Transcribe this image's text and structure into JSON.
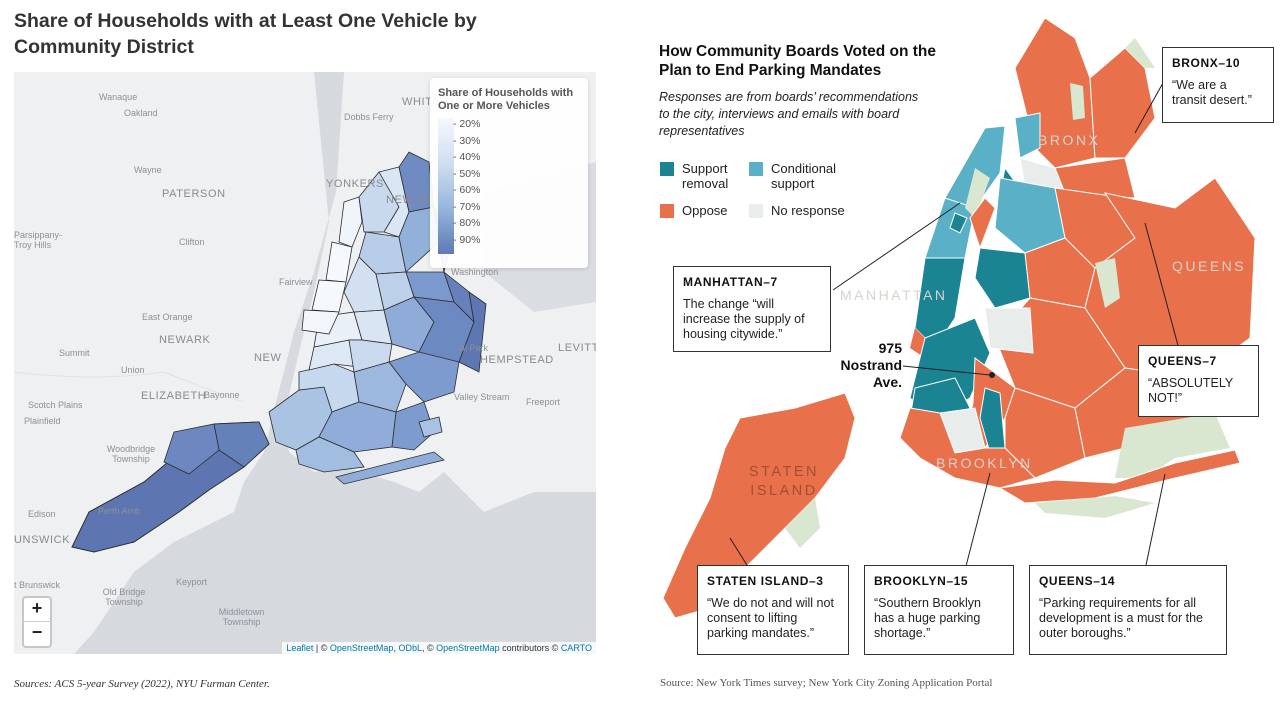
{
  "left": {
    "title": "Share of Households with at Least One Vehicle by Community District",
    "legend": {
      "title": "Share of Households with One or More Vehicles",
      "ticks": [
        "20%",
        "30%",
        "40%",
        "50%",
        "60%",
        "70%",
        "80%",
        "90%"
      ],
      "colors": [
        "#f5f8fc",
        "#e4edf7",
        "#cfdff0",
        "#b6cce7",
        "#95b5dc",
        "#7d9dcf",
        "#6a86c0",
        "#5f79b5"
      ]
    },
    "place_labels": [
      "Wanaque",
      "Oakland",
      "Dobbs Ferry",
      "WHITE",
      "Wayne",
      "PATERSON",
      "YONKERS",
      "NEW ROC",
      "Parsippany-Troy Hills",
      "Clifton",
      "Washington",
      "Fairview",
      "East Orange",
      "NEWARK",
      "NEW",
      "Summit",
      "Union",
      "ELIZABETH",
      "Bayonne",
      "Scotch Plains",
      "Plainfield",
      "Woodbridge Township",
      "Perth Amb",
      "Edison",
      "UNSWICK",
      "Old Bridge Township",
      "t Brunswick",
      "Keyport",
      "Middletown Township",
      "HEMPSTEAD",
      "Valley Stream",
      "Freeport",
      "LEVITTO",
      "al Park"
    ],
    "zoom": {
      "in": "+",
      "out": "−"
    },
    "attribution": {
      "leaflet": "Leaflet",
      "sep": " | © ",
      "osm": "OpenStreetMap",
      "comma": ", ",
      "odbl": "ODbL",
      "mid": ", © ",
      "osm2": "OpenStreetMap",
      "contrib": " contributors © ",
      "carto": "CARTO"
    },
    "source": "Sources: ACS 5-year Survey (2022), NYU Furman Center."
  },
  "right": {
    "title": "How Community Boards Voted on the Plan to End Parking Mandates",
    "subtitle": "Responses are from boards’ recommendations to the city, interviews and emails with board representatives",
    "legend": [
      {
        "label": "Support removal",
        "color": "#1a8493"
      },
      {
        "label": "Conditional support",
        "color": "#5ab0c6"
      },
      {
        "label": "Oppose",
        "color": "#e8704a"
      },
      {
        "label": "No response",
        "color": "#e8edec"
      }
    ],
    "borough_labels": [
      "BRONX",
      "MANHATTAN",
      "QUEENS",
      "BROOKLYN",
      "STATEN ISLAND"
    ],
    "marker_label": "975 Nostrand Ave.",
    "callouts": [
      {
        "district": "BRONX–10",
        "quote": "“We are a transit desert.”"
      },
      {
        "district": "MANHATTAN–7",
        "quote": "The change “will increase the supply of housing citywide.”"
      },
      {
        "district": "QUEENS–7",
        "quote": "“ABSOLUTELY NOT!”"
      },
      {
        "district": "STATEN ISLAND–3",
        "quote": "“We do not and will not consent to lifting parking mandates.”"
      },
      {
        "district": "BROOKLYN–15",
        "quote": "“Southern Brooklyn has a huge parking shortage.”"
      },
      {
        "district": "QUEENS–14",
        "quote": "“Parking requirements for all development is a must for the outer boroughs.”"
      }
    ],
    "source": "Source: New York Times survey; New York City Zoning Application Portal"
  }
}
